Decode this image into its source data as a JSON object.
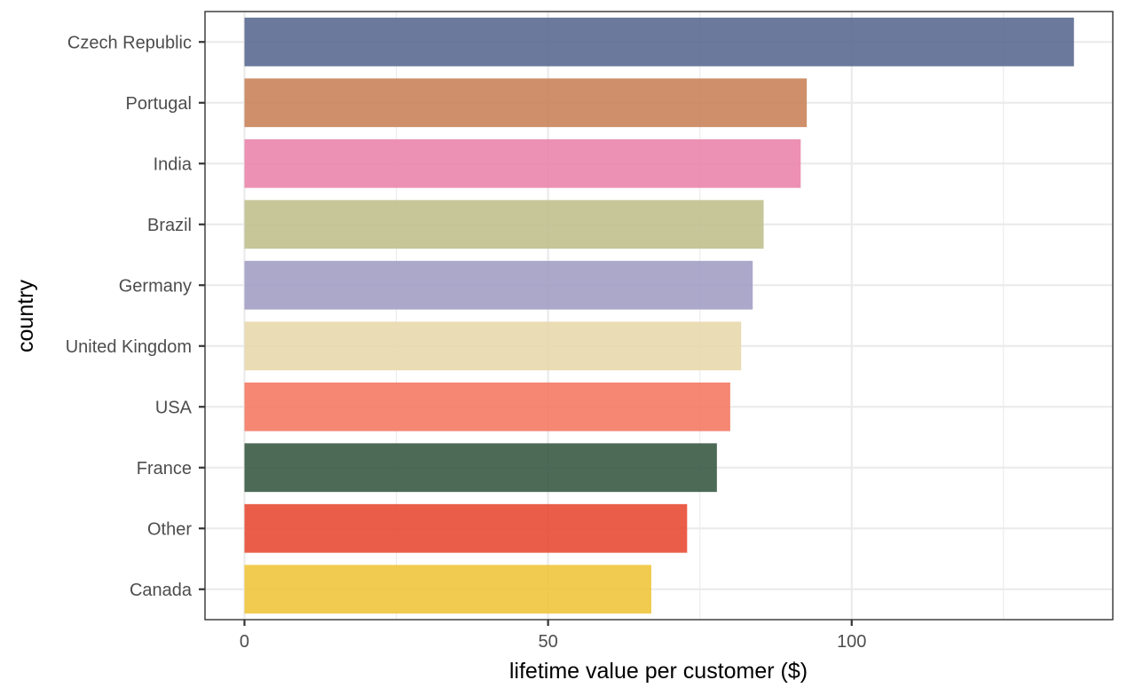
{
  "chart_data": {
    "type": "bar",
    "orientation": "horizontal",
    "title": "",
    "xlabel": "lifetime value per customer ($)",
    "ylabel": "country",
    "xlim": [
      -6.5,
      143
    ],
    "x_ticks": [
      0,
      50,
      100
    ],
    "x_tick_labels": [
      "0",
      "50",
      "100"
    ],
    "x_minor_ticks": [
      25,
      75,
      125
    ],
    "grid": true,
    "legend": "none",
    "categories": [
      "Czech Republic",
      "Portugal",
      "India",
      "Brazil",
      "Germany",
      "United Kingdom",
      "USA",
      "France",
      "Other",
      "Canada"
    ],
    "values": [
      136.6,
      92.6,
      91.6,
      85.5,
      83.7,
      81.8,
      80.0,
      77.8,
      72.9,
      67.0
    ],
    "colors": [
      "#5a6a91",
      "#c9835a",
      "#ea85ab",
      "#c0c08e",
      "#a29fc4",
      "#e8d8ac",
      "#f47a64",
      "#3a5a45",
      "#e84c35",
      "#f0c53c"
    ]
  }
}
